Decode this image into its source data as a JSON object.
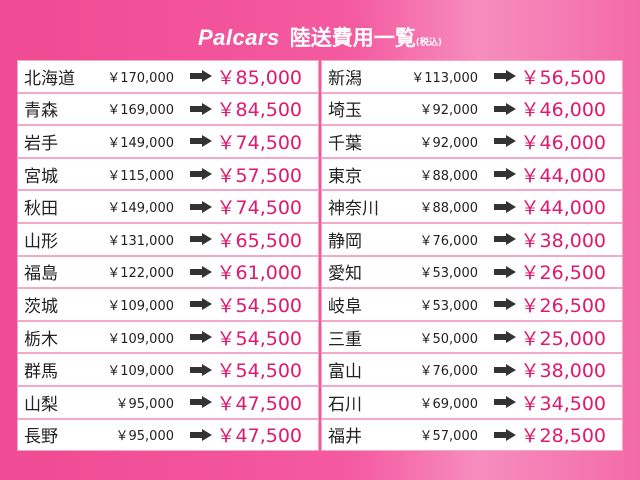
{
  "header": {
    "brand": "Palcars",
    "title": "陸送費用一覧",
    "tax_note": "(税込)"
  },
  "colors": {
    "accent": "#e0186f",
    "background": "#f04a93"
  },
  "rows": [
    {
      "pref": "北海道",
      "original": "￥170,000",
      "price": "￥85,000"
    },
    {
      "pref": "新潟",
      "original": "￥113,000",
      "price": "￥56,500"
    },
    {
      "pref": "青森",
      "original": "￥169,000",
      "price": "￥84,500"
    },
    {
      "pref": "埼玉",
      "original": "￥92,000",
      "price": "￥46,000"
    },
    {
      "pref": "岩手",
      "original": "￥149,000",
      "price": "￥74,500"
    },
    {
      "pref": "千葉",
      "original": "￥92,000",
      "price": "￥46,000"
    },
    {
      "pref": "宮城",
      "original": "￥115,000",
      "price": "￥57,500"
    },
    {
      "pref": "東京",
      "original": "￥88,000",
      "price": "￥44,000"
    },
    {
      "pref": "秋田",
      "original": "￥149,000",
      "price": "￥74,500"
    },
    {
      "pref": "神奈川",
      "original": "￥88,000",
      "price": "￥44,000"
    },
    {
      "pref": "山形",
      "original": "￥131,000",
      "price": "￥65,500"
    },
    {
      "pref": "静岡",
      "original": "￥76,000",
      "price": "￥38,000"
    },
    {
      "pref": "福島",
      "original": "￥122,000",
      "price": "￥61,000"
    },
    {
      "pref": "愛知",
      "original": "￥53,000",
      "price": "￥26,500"
    },
    {
      "pref": "茨城",
      "original": "￥109,000",
      "price": "￥54,500"
    },
    {
      "pref": "岐阜",
      "original": "￥53,000",
      "price": "￥26,500"
    },
    {
      "pref": "栃木",
      "original": "￥109,000",
      "price": "￥54,500"
    },
    {
      "pref": "三重",
      "original": "￥50,000",
      "price": "￥25,000"
    },
    {
      "pref": "群馬",
      "original": "￥109,000",
      "price": "￥54,500"
    },
    {
      "pref": "富山",
      "original": "￥76,000",
      "price": "￥38,000"
    },
    {
      "pref": "山梨",
      "original": "￥95,000",
      "price": "￥47,500"
    },
    {
      "pref": "石川",
      "original": "￥69,000",
      "price": "￥34,500"
    },
    {
      "pref": "長野",
      "original": "￥95,000",
      "price": "￥47,500"
    },
    {
      "pref": "福井",
      "original": "￥57,000",
      "price": "￥28,500"
    }
  ]
}
